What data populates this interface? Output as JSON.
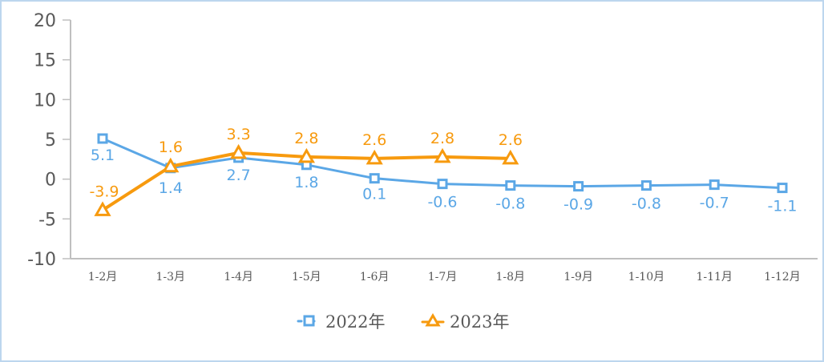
{
  "chart_data": {
    "type": "line",
    "title": "",
    "xlabel": "",
    "ylabel": "",
    "ylim": [
      -10,
      20
    ],
    "yticks": [
      20,
      15,
      10,
      5,
      0,
      -5,
      -10
    ],
    "grid": false,
    "legend_position": "bottom",
    "categories": [
      "1-2月",
      "1-3月",
      "1-4月",
      "1-5月",
      "1-6月",
      "1-7月",
      "1-8月",
      "1-9月",
      "1-10月",
      "1-11月",
      "1-12月"
    ],
    "series": [
      {
        "name": "2022年",
        "color": "#5ba7e6",
        "marker": "square",
        "values": [
          5.1,
          1.4,
          2.7,
          1.8,
          0.1,
          -0.6,
          -0.8,
          -0.9,
          -0.8,
          -0.7,
          -1.1
        ],
        "labels": [
          "5.1",
          "1.4",
          "2.7",
          "1.8",
          "0.1",
          "-0.6",
          "-0.8",
          "-0.9",
          "-0.8",
          "-0.7",
          "-1.1"
        ]
      },
      {
        "name": "2023年",
        "color": "#f79a0e",
        "marker": "triangle",
        "values": [
          -3.9,
          1.6,
          3.3,
          2.8,
          2.6,
          2.8,
          2.6
        ],
        "labels": [
          "-3.9",
          "1.6",
          "3.3",
          "2.8",
          "2.6",
          "2.8",
          "2.6"
        ]
      }
    ]
  },
  "legend": {
    "items": [
      {
        "label": "2022年",
        "icon": "square-marker-icon",
        "color": "#5ba7e6"
      },
      {
        "label": "2023年",
        "icon": "triangle-marker-icon",
        "color": "#f79a0e"
      }
    ]
  }
}
